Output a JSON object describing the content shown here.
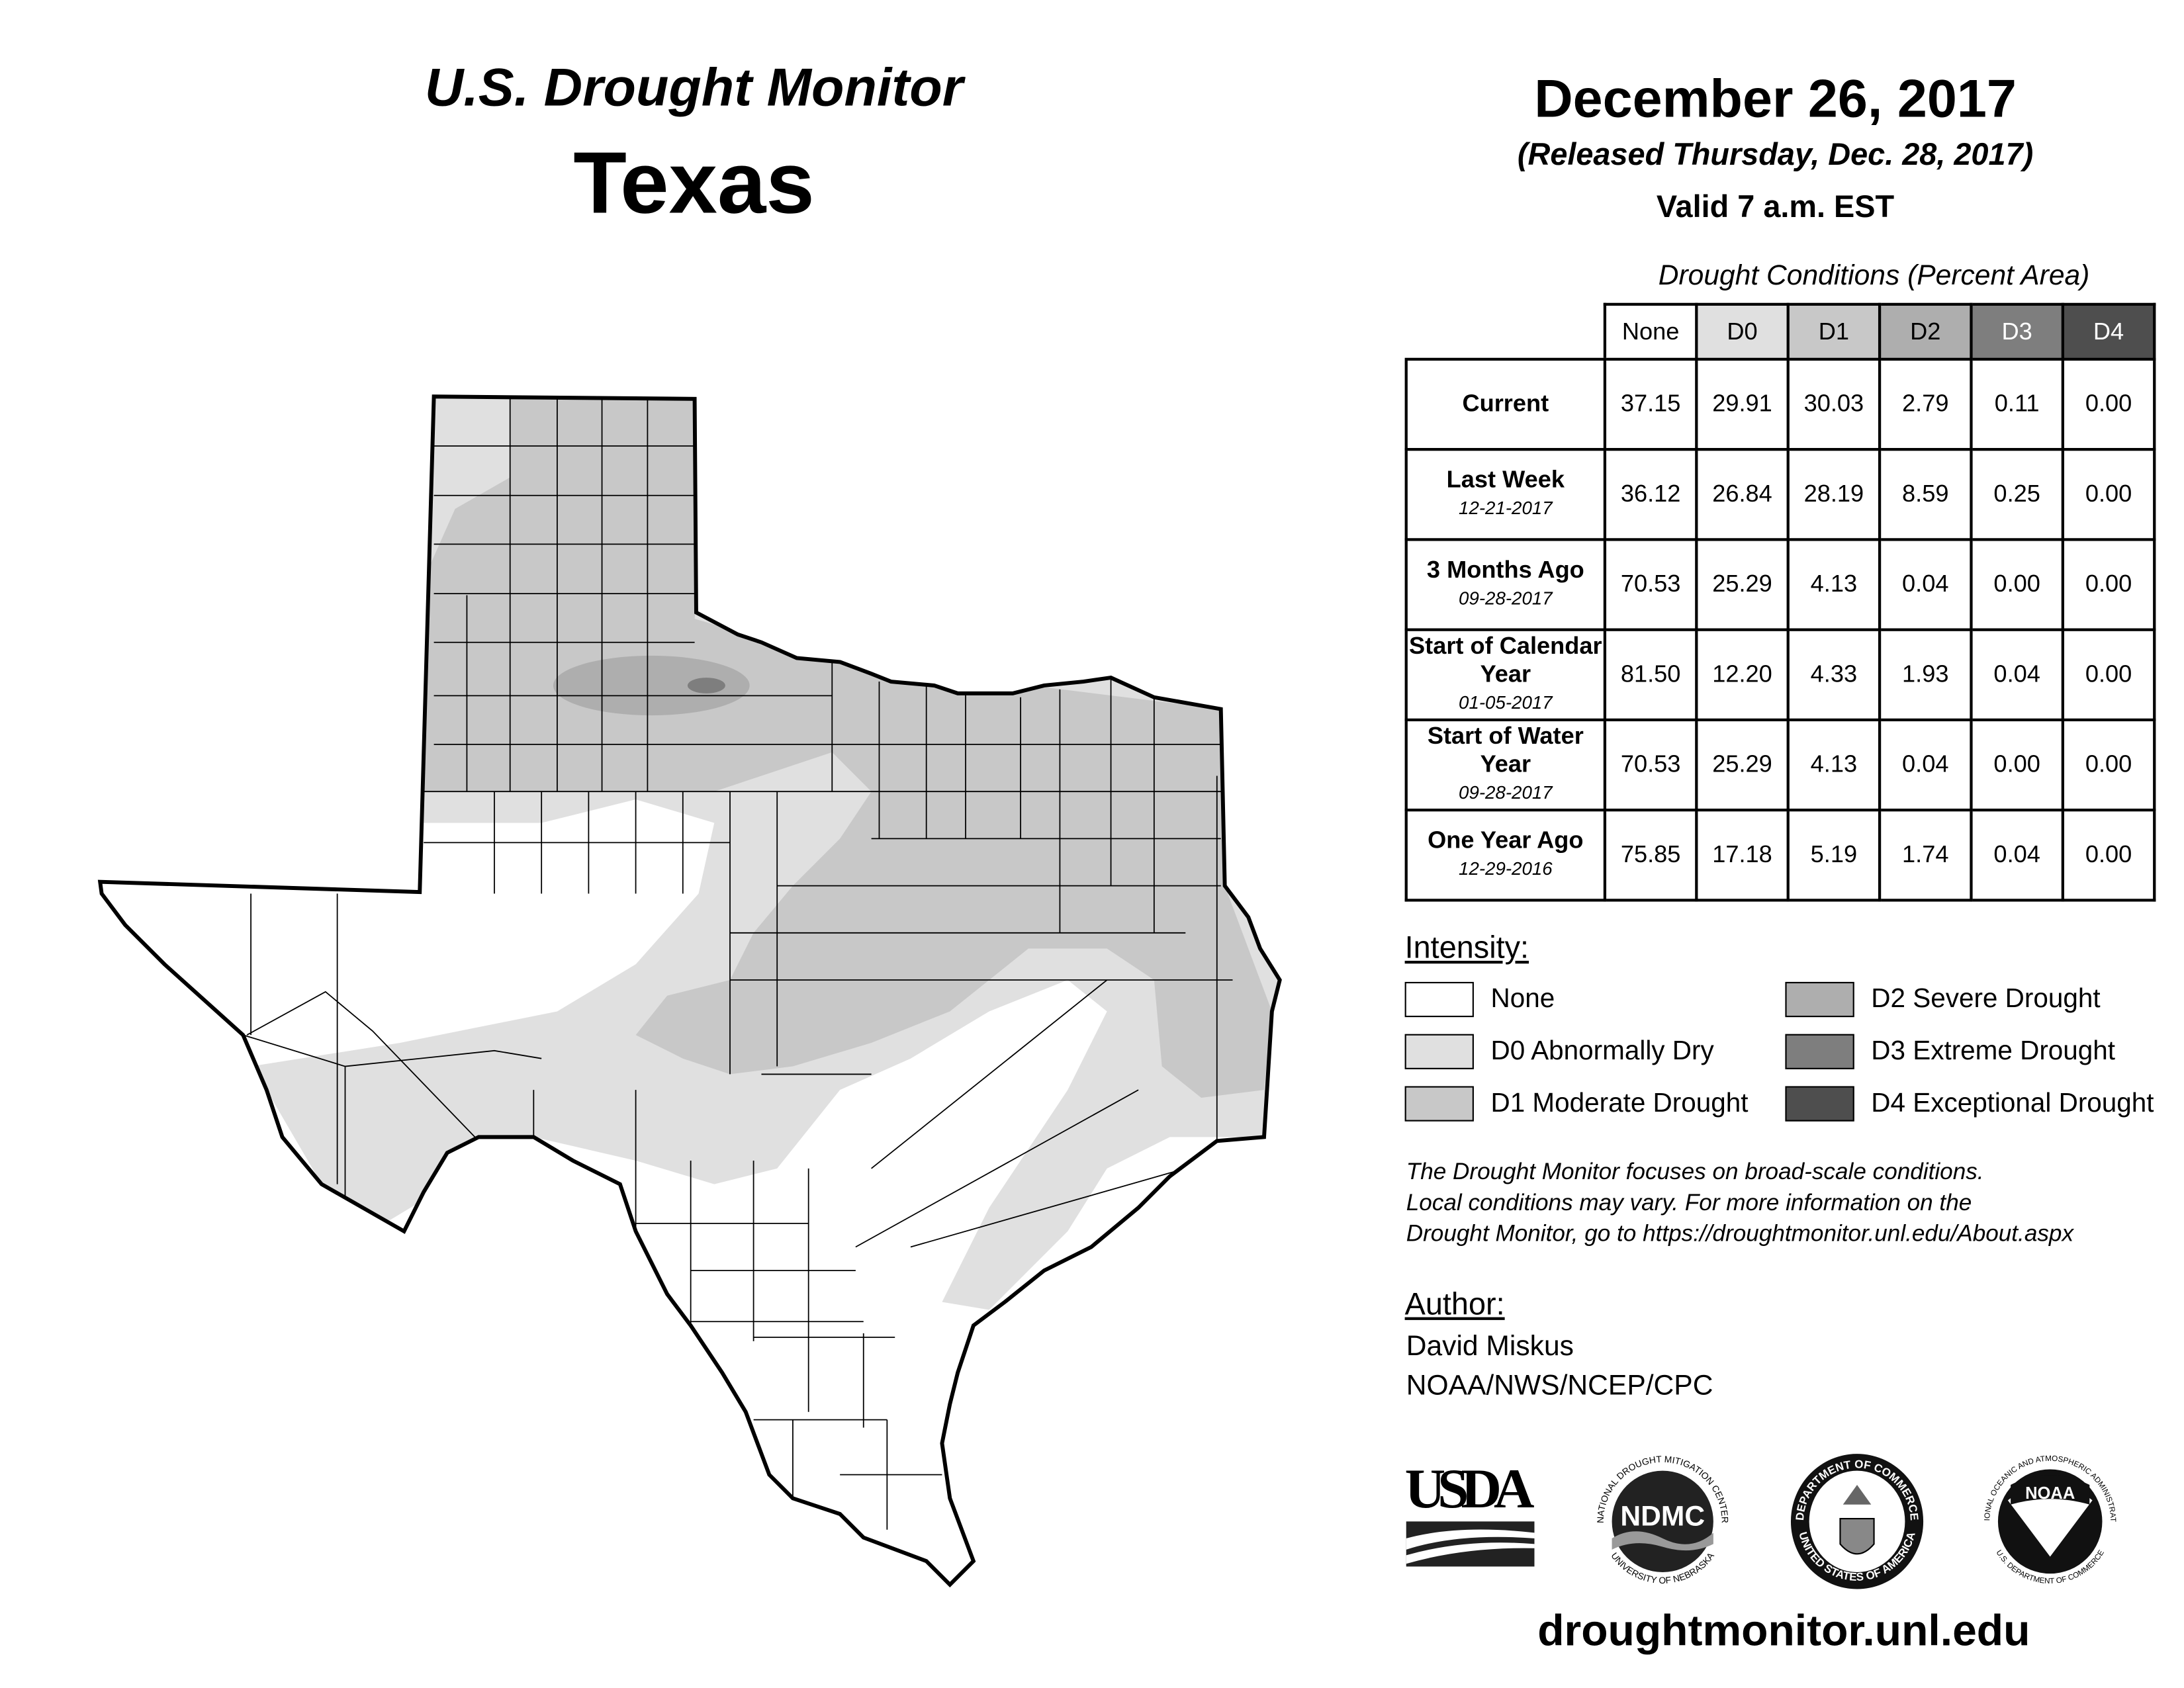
{
  "header": {
    "title": "U.S. Drought Monitor",
    "state": "Texas",
    "date": "December 26, 2017",
    "released": "(Released Thursday, Dec. 28, 2017)",
    "valid": "Valid 7 a.m. EST"
  },
  "table": {
    "caption": "Drought Conditions (Percent Area)",
    "columns": [
      "None",
      "D0",
      "D1",
      "D2",
      "D3",
      "D4"
    ],
    "rows": [
      {
        "label": "Current",
        "date": "",
        "values": [
          "37.15",
          "29.91",
          "30.03",
          "2.79",
          "0.11",
          "0.00"
        ]
      },
      {
        "label": "Last Week",
        "date": "12-21-2017",
        "values": [
          "36.12",
          "26.84",
          "28.19",
          "8.59",
          "0.25",
          "0.00"
        ]
      },
      {
        "label": "3 Months Ago",
        "date": "09-28-2017",
        "values": [
          "70.53",
          "25.29",
          "4.13",
          "0.04",
          "0.00",
          "0.00"
        ]
      },
      {
        "label": "Start of Calendar Year",
        "date": "01-05-2017",
        "values": [
          "81.50",
          "12.20",
          "4.33",
          "1.93",
          "0.04",
          "0.00"
        ]
      },
      {
        "label": "Start of Water Year",
        "date": "09-28-2017",
        "values": [
          "70.53",
          "25.29",
          "4.13",
          "0.04",
          "0.00",
          "0.00"
        ]
      },
      {
        "label": "One Year Ago",
        "date": "12-29-2016",
        "values": [
          "75.85",
          "17.18",
          "5.19",
          "1.74",
          "0.04",
          "0.00"
        ]
      }
    ]
  },
  "legend": {
    "title": "Intensity:",
    "items": [
      {
        "label": "None",
        "color": "#ffffff"
      },
      {
        "label": "D0 Abnormally Dry",
        "color": "#e0e0e0"
      },
      {
        "label": "D1 Moderate Drought",
        "color": "#c8c8c8"
      },
      {
        "label": "D2 Severe Drought",
        "color": "#aeaeae"
      },
      {
        "label": "D3 Extreme Drought",
        "color": "#7e7e7e"
      },
      {
        "label": "D4 Exceptional Drought",
        "color": "#4e4e4e"
      }
    ]
  },
  "note": [
    "The Drought Monitor focuses on broad-scale conditions.",
    "Local conditions may vary. For more information on the",
    "Drought Monitor, go to https://droughtmonitor.unl.edu/About.aspx"
  ],
  "author": {
    "title": "Author:",
    "name": "David Miskus",
    "org": "NOAA/NWS/NCEP/CPC"
  },
  "logos": {
    "usda": "USDA",
    "ndmc": "NDMC",
    "ndmc_ring_top": "NATIONAL DROUGHT MITIGATION CENTER",
    "ndmc_ring_bottom": "UNIVERSITY OF NEBRASKA",
    "doc_ring_top": "DEPARTMENT OF COMMERCE",
    "doc_ring_bottom": "UNITED STATES OF AMERICA",
    "noaa": "NOAA",
    "noaa_ring_top": "NATIONAL OCEANIC AND ATMOSPHERIC ADMINISTRATION",
    "noaa_ring_bottom": "U.S. DEPARTMENT OF COMMERCE"
  },
  "url": "droughtmonitor.unl.edu"
}
